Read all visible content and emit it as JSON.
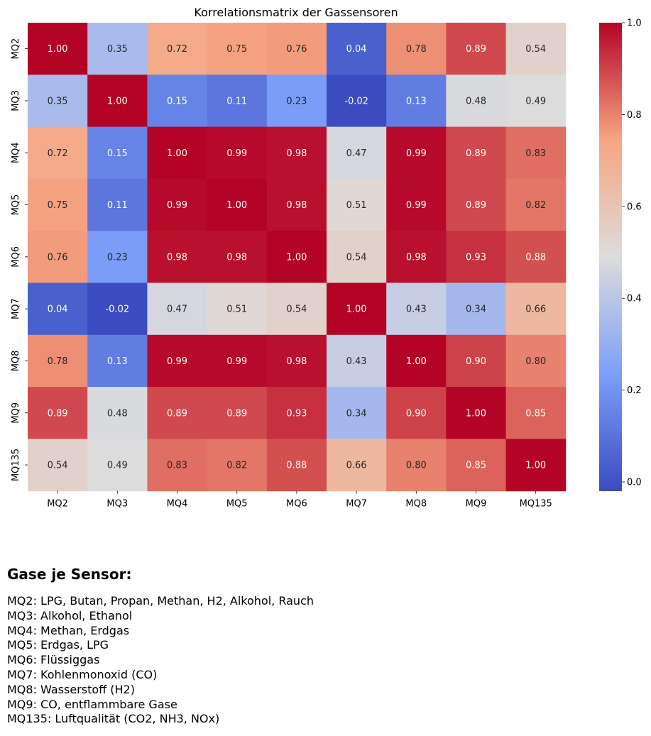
{
  "chart_data": {
    "type": "heatmap",
    "title": "Korrelationsmatrix der Gassensoren",
    "row_labels": [
      "MQ2",
      "MQ3",
      "MQ4",
      "MQ5",
      "MQ6",
      "MQ7",
      "MQ8",
      "MQ9",
      "MQ135"
    ],
    "col_labels": [
      "MQ2",
      "MQ3",
      "MQ4",
      "MQ5",
      "MQ6",
      "MQ7",
      "MQ8",
      "MQ9",
      "MQ135"
    ],
    "values": [
      [
        1.0,
        0.35,
        0.72,
        0.75,
        0.76,
        0.04,
        0.78,
        0.89,
        0.54
      ],
      [
        0.35,
        1.0,
        0.15,
        0.11,
        0.23,
        -0.02,
        0.13,
        0.48,
        0.49
      ],
      [
        0.72,
        0.15,
        1.0,
        0.99,
        0.98,
        0.47,
        0.99,
        0.89,
        0.83
      ],
      [
        0.75,
        0.11,
        0.99,
        1.0,
        0.98,
        0.51,
        0.99,
        0.89,
        0.82
      ],
      [
        0.76,
        0.23,
        0.98,
        0.98,
        1.0,
        0.54,
        0.98,
        0.93,
        0.88
      ],
      [
        0.04,
        -0.02,
        0.47,
        0.51,
        0.54,
        1.0,
        0.43,
        0.34,
        0.66
      ],
      [
        0.78,
        0.13,
        0.99,
        0.99,
        0.98,
        0.43,
        1.0,
        0.9,
        0.8
      ],
      [
        0.89,
        0.48,
        0.89,
        0.89,
        0.93,
        0.34,
        0.9,
        1.0,
        0.85
      ],
      [
        0.54,
        0.49,
        0.83,
        0.82,
        0.88,
        0.66,
        0.8,
        0.85,
        1.0
      ]
    ],
    "value_format": "2 decimals",
    "colormap": "coolwarm",
    "vmin": -0.02,
    "vmax": 1.0,
    "colorbar_ticks": [
      "0.0",
      "0.2",
      "0.4",
      "0.6",
      "0.8",
      "1.0"
    ],
    "colorbar_position": "right"
  },
  "legend_section": {
    "title": "Gase je Sensor:",
    "items": [
      "MQ2: LPG, Butan, Propan, Methan, H2, Alkohol, Rauch",
      "MQ3: Alkohol, Ethanol",
      "MQ4: Methan, Erdgas",
      "MQ5: Erdgas, LPG",
      "MQ6: Flüssiggas",
      "MQ7: Kohlenmonoxid (CO)",
      "MQ8: Wasserstoff (H2)",
      "MQ9: CO, entflammbare Gase",
      "MQ135: Luftqualität (CO2, NH3, NOx)"
    ]
  }
}
